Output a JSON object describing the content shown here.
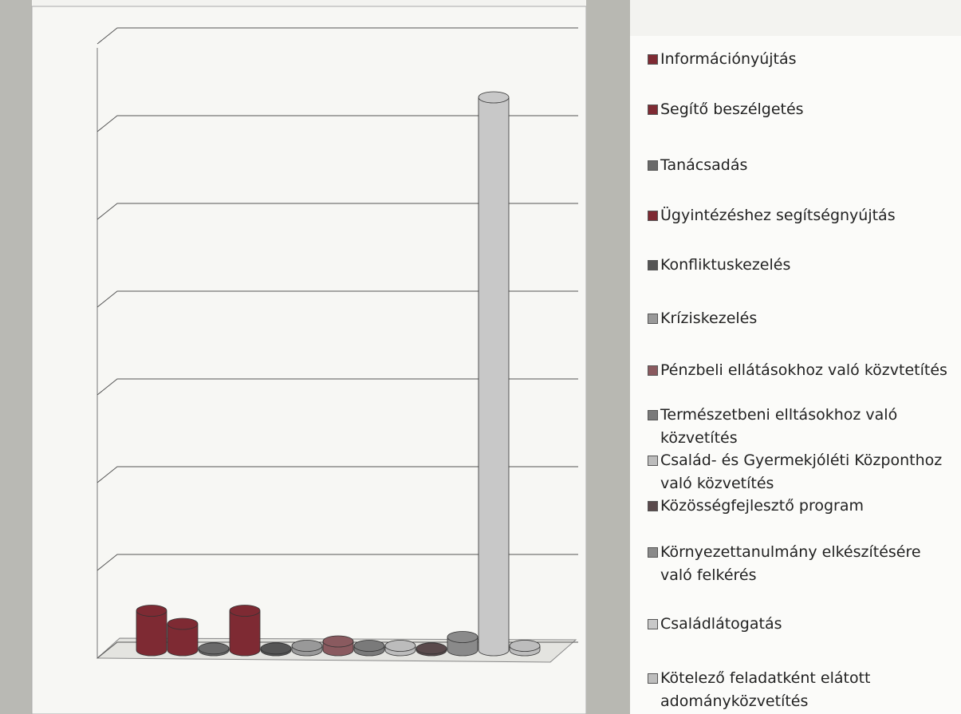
{
  "chart_data": {
    "type": "bar",
    "categories": [
      "Információnyújtás",
      "Segítő beszélgetés",
      "Tanácsadás",
      "Ügyintézéshez segítségnyújtás",
      "Konfliktuskezelés",
      "Kríziskezelés",
      "Pénzbeli ellátásokhoz való közvtetítés",
      "Természetbeni elltásokhoz való közvetítés",
      "Család- és Gyermekjóléti Központhoz való közvetítés",
      "Közösségfejlesztő program",
      "Környezettanulmány elkészítésére való felkérés",
      "Családlátogatás",
      "Kötelező feladatként elátott adományközvetítés"
    ],
    "values": [
      0.45,
      0.3,
      0.02,
      0.45,
      0.02,
      0.05,
      0.1,
      0.05,
      0.05,
      0.02,
      0.15,
      6.3,
      0.05
    ],
    "colors": [
      "#7e2a33",
      "#7e2a33",
      "#6a6a6a",
      "#7e2a33",
      "#555555",
      "#999999",
      "#8a5a5f",
      "#7a7a7a",
      "#bcbcbc",
      "#5a4a4c",
      "#8a8a8a",
      "#c8c8c8",
      "#bdbdbd"
    ],
    "ylim": [
      0,
      7
    ],
    "yticks": [
      0,
      1,
      2,
      3,
      4,
      5,
      6,
      7
    ],
    "grid": true
  }
}
